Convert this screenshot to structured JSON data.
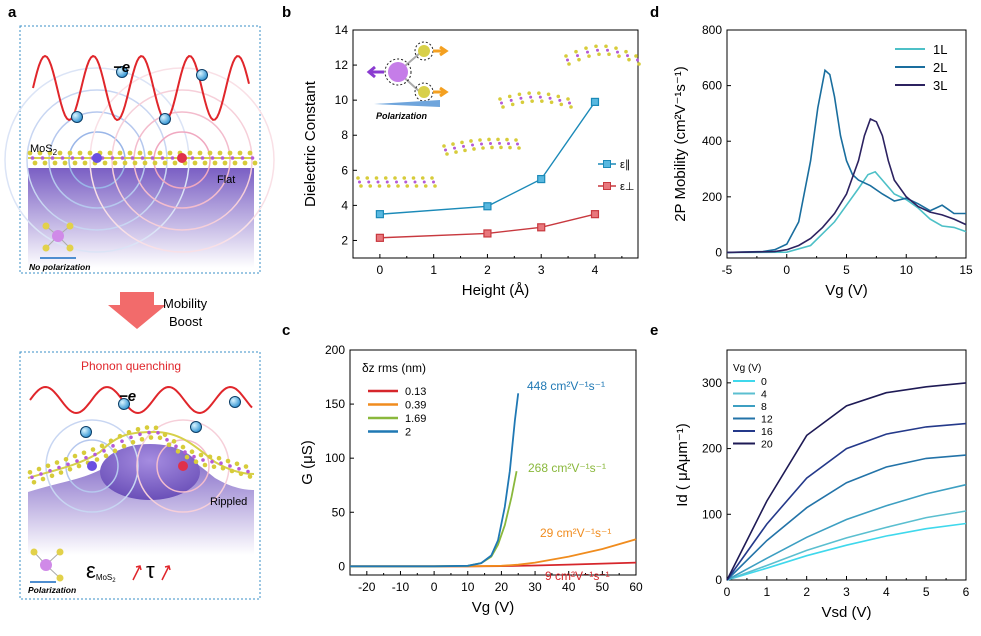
{
  "panel_a": {
    "label": "a",
    "top": {
      "electron": "−e",
      "material": "MoS",
      "material_sub": "2",
      "surface": "Flat",
      "inset": "No polarization"
    },
    "arrow": {
      "line1": "Mobility",
      "line2": "Boost"
    },
    "bottom": {
      "title": "Phonon quenching",
      "electron": "−e",
      "surface": "Rippled",
      "inset": "Polarization",
      "eps_symbol": "ε",
      "eps_sub": "MoS",
      "eps_sub2": "2",
      "tau_symbol": "τ"
    },
    "colors": {
      "wave": "#e0262b",
      "arrow": "#f26b6b",
      "border": "#3a8fc7",
      "substrate": "#8a6fc8"
    }
  },
  "chart_data": [
    {
      "panel": "b",
      "type": "line",
      "xlabel": "Height (Å)",
      "ylabel": "Dielectric Constant",
      "xlim": [
        -0.5,
        4.8
      ],
      "ylim": [
        1,
        14
      ],
      "xticks": [
        "0",
        "1",
        "2",
        "3",
        "4"
      ],
      "yticks": [
        "2",
        "4",
        "6",
        "8",
        "10",
        "12",
        "14"
      ],
      "legend_position": "right",
      "inset_label": "Polarization",
      "series": [
        {
          "name": "ε∥",
          "color": "#1b8ab8",
          "x": [
            0,
            2,
            3,
            4
          ],
          "y": [
            3.5,
            3.95,
            5.5,
            9.9
          ]
        },
        {
          "name": "ε⊥",
          "color": "#c8393f",
          "x": [
            0,
            2,
            3,
            4
          ],
          "y": [
            2.15,
            2.4,
            2.75,
            3.5
          ]
        }
      ]
    },
    {
      "panel": "c",
      "type": "line",
      "xlabel": "Vg (V)",
      "ylabel": "G (μS)",
      "xlim": [
        -25,
        60
      ],
      "ylim": [
        -8,
        200
      ],
      "xticks": [
        "-20",
        "-10",
        "0",
        "10",
        "20",
        "30",
        "40",
        "50",
        "60"
      ],
      "yticks": [
        "0",
        "50",
        "100",
        "150",
        "200"
      ],
      "legend_title": "δz rms (nm)",
      "legend_position": "top-left",
      "series": [
        {
          "name": "0.13",
          "color": "#d6262b",
          "annotation": "9 cm²V⁻¹s⁻¹",
          "x": [
            -25,
            0,
            10,
            20,
            30,
            40,
            50,
            60
          ],
          "y": [
            0,
            0,
            0,
            0.2,
            0.8,
            1.6,
            2.5,
            3.5
          ]
        },
        {
          "name": "0.39",
          "color": "#f08c1e",
          "annotation": "29 cm²V⁻¹s⁻¹",
          "x": [
            -25,
            0,
            10,
            20,
            25,
            30,
            40,
            50,
            60
          ],
          "y": [
            0,
            0,
            0,
            0.5,
            1.5,
            3.5,
            9,
            16,
            25
          ]
        },
        {
          "name": "1.69",
          "color": "#8ab83c",
          "annotation": "268 cm²V⁻¹s⁻¹",
          "x": [
            -25,
            0,
            10,
            14,
            17,
            19,
            21,
            23,
            24.5
          ],
          "y": [
            0,
            0,
            0.5,
            3,
            9,
            20,
            38,
            64,
            88
          ]
        },
        {
          "name": "2",
          "color": "#1f78b4",
          "annotation": "448 cm²V⁻¹s⁻¹",
          "x": [
            -25,
            0,
            10,
            14,
            17,
            19,
            21,
            22.5,
            24,
            25
          ],
          "y": [
            0,
            0,
            0.5,
            3,
            10,
            24,
            55,
            88,
            135,
            160
          ]
        }
      ]
    },
    {
      "panel": "d",
      "type": "line",
      "xlabel": "Vg (V)",
      "ylabel": "2P Mobility (cm²V⁻¹s⁻¹)",
      "xlim": [
        -5,
        15
      ],
      "ylim": [
        -20,
        800
      ],
      "xticks": [
        "-5",
        "0",
        "5",
        "10",
        "15"
      ],
      "yticks": [
        "0",
        "200",
        "400",
        "600",
        "800"
      ],
      "legend_position": "top-right",
      "series": [
        {
          "name": "1L",
          "color": "#4dc0c7",
          "x": [
            -5,
            0,
            2,
            4,
            5,
            6,
            6.8,
            7.4,
            8,
            9,
            10,
            11,
            12,
            13,
            14,
            15
          ],
          "y": [
            0,
            1,
            25,
            110,
            170,
            230,
            280,
            290,
            260,
            210,
            190,
            160,
            120,
            95,
            90,
            75
          ]
        },
        {
          "name": "2L",
          "color": "#1a6e9e",
          "x": [
            -5,
            -2,
            -1,
            0,
            1,
            2,
            2.6,
            3.2,
            3.6,
            4,
            4.5,
            5,
            5.5,
            6,
            7,
            8,
            9,
            10,
            11,
            12,
            12.5,
            13,
            13.5,
            14,
            15
          ],
          "y": [
            0,
            3,
            10,
            30,
            110,
            330,
            520,
            655,
            640,
            560,
            420,
            330,
            280,
            260,
            240,
            210,
            185,
            195,
            175,
            150,
            160,
            170,
            155,
            140,
            140
          ]
        },
        {
          "name": "3L",
          "color": "#2c2260",
          "x": [
            -5,
            -1,
            0,
            1,
            2,
            3,
            4,
            5,
            6,
            6.5,
            7,
            7.5,
            8,
            8.5,
            9,
            10,
            11,
            12,
            13,
            14,
            15
          ],
          "y": [
            0,
            3,
            10,
            25,
            50,
            90,
            140,
            210,
            330,
            420,
            480,
            470,
            420,
            330,
            260,
            200,
            165,
            145,
            135,
            120,
            100
          ]
        }
      ]
    },
    {
      "panel": "e",
      "type": "line",
      "xlabel": "Vsd (V)",
      "ylabel": "Id ( μAμm⁻¹)",
      "xlim": [
        0,
        6
      ],
      "ylim": [
        0,
        350
      ],
      "xticks": [
        "0",
        "1",
        "2",
        "3",
        "4",
        "5",
        "6"
      ],
      "yticks": [
        "0",
        "100",
        "200",
        "300"
      ],
      "legend_title": "Vg (V)",
      "legend_position": "top-left",
      "series": [
        {
          "name": "0",
          "color": "#3fd8ec",
          "x": [
            0,
            1,
            2,
            3,
            4,
            5,
            6
          ],
          "y": [
            0,
            18,
            37,
            53,
            67,
            78,
            86
          ]
        },
        {
          "name": "4",
          "color": "#5bbfd0",
          "x": [
            0,
            1,
            2,
            3,
            4,
            5,
            6
          ],
          "y": [
            0,
            22,
            45,
            64,
            80,
            95,
            105
          ]
        },
        {
          "name": "8",
          "color": "#3d9fc2",
          "x": [
            0,
            1,
            2,
            3,
            4,
            5,
            6
          ],
          "y": [
            0,
            33,
            65,
            92,
            113,
            131,
            145
          ]
        },
        {
          "name": "12",
          "color": "#2373a8",
          "x": [
            0,
            1,
            2,
            3,
            4,
            5,
            6
          ],
          "y": [
            0,
            60,
            110,
            148,
            172,
            185,
            190
          ]
        },
        {
          "name": "16",
          "color": "#24398a",
          "x": [
            0,
            1,
            2,
            3,
            4,
            5,
            6
          ],
          "y": [
            0,
            85,
            155,
            200,
            222,
            233,
            238
          ]
        },
        {
          "name": "20",
          "color": "#1e1a55",
          "x": [
            0,
            1,
            2,
            3,
            4,
            5,
            6
          ],
          "y": [
            0,
            120,
            220,
            265,
            285,
            294,
            300
          ]
        }
      ]
    }
  ]
}
